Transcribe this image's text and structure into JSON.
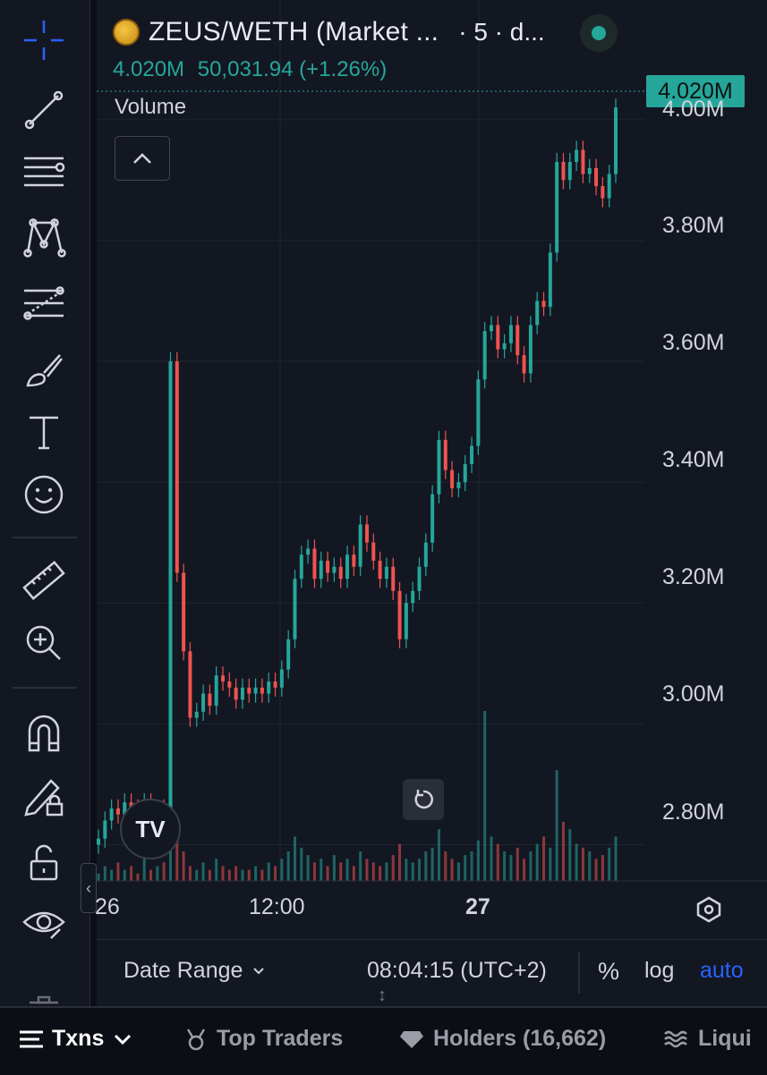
{
  "header": {
    "symbol_title": "ZEUS/WETH (Market ...",
    "interval": "· 5 · d...",
    "last_value": "4.020M",
    "change": "50,031.94 (+1.26%)",
    "volume_label": "Volume",
    "status_color": "#26a69a"
  },
  "price_tag": "4.020M",
  "colors": {
    "up": "#26a69a",
    "down": "#ef5350",
    "accent": "#2962ff",
    "background": "#131722"
  },
  "chart_data": {
    "type": "line",
    "series": [
      {
        "name": "",
        "values": [
          2.81,
          2.84,
          2.86,
          2.85,
          2.87,
          2.86,
          2.84,
          2.87,
          2.83,
          2.86,
          2.84,
          3.6,
          3.25,
          3.12,
          3.01,
          3.02,
          3.05,
          3.03,
          3.08,
          3.07,
          3.06,
          3.04,
          3.06,
          3.05,
          3.06,
          3.05,
          3.07,
          3.06,
          3.09,
          3.14,
          3.24,
          3.28,
          3.29,
          3.24,
          3.27,
          3.25,
          3.26,
          3.24,
          3.28,
          3.26,
          3.33,
          3.3,
          3.27,
          3.24,
          3.26,
          3.22,
          3.14,
          3.2,
          3.22,
          3.26,
          3.3,
          3.38,
          3.47,
          3.42,
          3.39,
          3.4,
          3.43,
          3.46,
          3.57,
          3.65,
          3.66,
          3.62,
          3.63,
          3.66,
          3.61,
          3.58,
          3.66,
          3.7,
          3.69,
          3.78,
          3.93,
          3.9,
          3.93,
          3.95,
          3.91,
          3.92,
          3.89,
          3.87,
          3.91,
          4.02
        ]
      }
    ],
    "x_ticks": [
      "26",
      "12:00",
      "27"
    ],
    "y_ticks": [
      "2.80M",
      "3.00M",
      "3.20M",
      "3.40M",
      "3.60M",
      "3.80M",
      "4.00M"
    ],
    "ylim": [
      2.74,
      4.05
    ],
    "volume": [
      2,
      4,
      3,
      5,
      3,
      4,
      2,
      6,
      3,
      4,
      5,
      30,
      14,
      8,
      4,
      3,
      5,
      3,
      6,
      4,
      3,
      4,
      3,
      3,
      4,
      3,
      5,
      4,
      6,
      8,
      12,
      9,
      7,
      5,
      6,
      4,
      7,
      5,
      6,
      4,
      8,
      6,
      5,
      4,
      5,
      7,
      10,
      6,
      5,
      6,
      8,
      9,
      14,
      8,
      6,
      5,
      7,
      8,
      11,
      46,
      12,
      10,
      8,
      7,
      9,
      6,
      8,
      10,
      12,
      9,
      30,
      16,
      14,
      10,
      9,
      8,
      6,
      7,
      9,
      12
    ],
    "grid": true
  },
  "toolbar": {
    "tools": [
      "crosshair",
      "trend-line",
      "horizontal-lines",
      "pattern",
      "fib-retracement",
      "brush",
      "text",
      "emoji",
      "ruler",
      "zoom-in",
      "magnet",
      "lock-drawing",
      "lock",
      "eye"
    ]
  },
  "bottom_bar": {
    "date_range": "Date Range",
    "clock": "08:04:15 (UTC+2)",
    "percent": "%",
    "log": "log",
    "auto": "auto"
  },
  "footer_tabs": [
    {
      "label": "Txns"
    },
    {
      "label": "Top Traders"
    },
    {
      "label": "Holders (16,662)"
    },
    {
      "label": "Liqui"
    }
  ]
}
